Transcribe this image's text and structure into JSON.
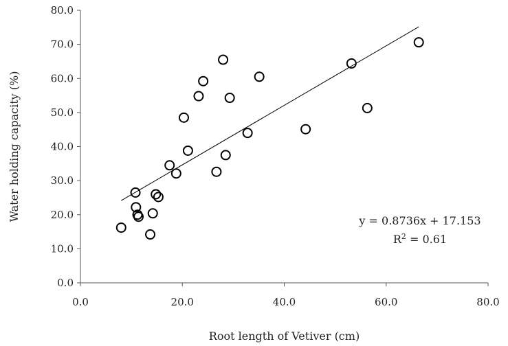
{
  "chart_data": {
    "type": "scatter",
    "title": "",
    "xlabel": "Root length of Vetiver (cm)",
    "ylabel": "Water holding capacity (%)",
    "xlim": [
      0,
      80
    ],
    "ylim": [
      0,
      80
    ],
    "x_ticks": [
      "0.0",
      "20.0",
      "40.0",
      "60.0",
      "80.0"
    ],
    "y_ticks": [
      "0.0",
      "10.0",
      "20.0",
      "30.0",
      "40.0",
      "50.0",
      "60.0",
      "70.0",
      "80.0"
    ],
    "grid": false,
    "legend": "none",
    "marker": "open-circle",
    "series": [
      {
        "points": [
          {
            "x": 8.0,
            "y": 16.2
          },
          {
            "x": 10.8,
            "y": 26.5
          },
          {
            "x": 10.9,
            "y": 22.2
          },
          {
            "x": 11.2,
            "y": 20.0
          },
          {
            "x": 11.4,
            "y": 19.4
          },
          {
            "x": 13.7,
            "y": 14.2
          },
          {
            "x": 14.2,
            "y": 20.4
          },
          {
            "x": 14.8,
            "y": 26.0
          },
          {
            "x": 15.3,
            "y": 25.2
          },
          {
            "x": 17.5,
            "y": 34.5
          },
          {
            "x": 18.8,
            "y": 32.1
          },
          {
            "x": 20.3,
            "y": 48.5
          },
          {
            "x": 21.1,
            "y": 38.8
          },
          {
            "x": 23.2,
            "y": 54.8
          },
          {
            "x": 24.1,
            "y": 59.2
          },
          {
            "x": 26.7,
            "y": 32.6
          },
          {
            "x": 28.0,
            "y": 65.5
          },
          {
            "x": 28.5,
            "y": 37.5
          },
          {
            "x": 29.3,
            "y": 54.3
          },
          {
            "x": 32.8,
            "y": 44.0
          },
          {
            "x": 35.1,
            "y": 60.5
          },
          {
            "x": 44.2,
            "y": 45.1
          },
          {
            "x": 53.2,
            "y": 64.4
          },
          {
            "x": 56.3,
            "y": 51.3
          },
          {
            "x": 66.4,
            "y": 70.6
          }
        ]
      }
    ],
    "trendline": {
      "slope": 0.8736,
      "intercept": 17.153,
      "x_range": [
        8.0,
        66.4
      ],
      "equation": "y = 0.8736x + 17.153",
      "r2_prefix": "R",
      "r2_sup": "2",
      "r2_suffix": " = 0.61"
    }
  }
}
